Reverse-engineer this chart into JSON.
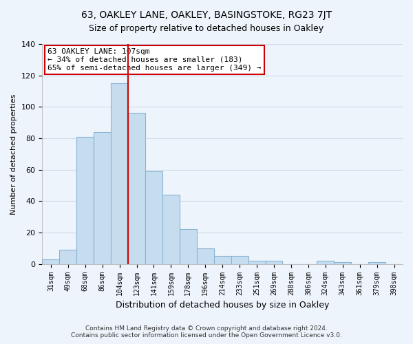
{
  "title": "63, OAKLEY LANE, OAKLEY, BASINGSTOKE, RG23 7JT",
  "subtitle": "Size of property relative to detached houses in Oakley",
  "xlabel": "Distribution of detached houses by size in Oakley",
  "ylabel": "Number of detached properties",
  "categories": [
    "31sqm",
    "49sqm",
    "68sqm",
    "86sqm",
    "104sqm",
    "123sqm",
    "141sqm",
    "159sqm",
    "178sqm",
    "196sqm",
    "214sqm",
    "233sqm",
    "251sqm",
    "269sqm",
    "288sqm",
    "306sqm",
    "324sqm",
    "343sqm",
    "361sqm",
    "379sqm",
    "398sqm"
  ],
  "values": [
    3,
    9,
    81,
    84,
    115,
    96,
    59,
    44,
    22,
    10,
    5,
    5,
    2,
    2,
    0,
    0,
    2,
    1,
    0,
    1,
    0
  ],
  "bar_color": "#c6ddef",
  "bar_edge_color": "#8ab4d4",
  "highlight_line_color": "#cc0000",
  "highlight_bar_index": 4,
  "ylim": [
    0,
    140
  ],
  "yticks": [
    0,
    20,
    40,
    60,
    80,
    100,
    120,
    140
  ],
  "annotation_text": "63 OAKLEY LANE: 107sqm\n← 34% of detached houses are smaller (183)\n65% of semi-detached houses are larger (349) →",
  "annotation_bbox_edgecolor": "#cc0000",
  "annotation_bbox_facecolor": "#ffffff",
  "footer_line1": "Contains HM Land Registry data © Crown copyright and database right 2024.",
  "footer_line2": "Contains public sector information licensed under the Open Government Licence v3.0.",
  "background_color": "#eef4fb",
  "grid_color": "#d0dce8"
}
